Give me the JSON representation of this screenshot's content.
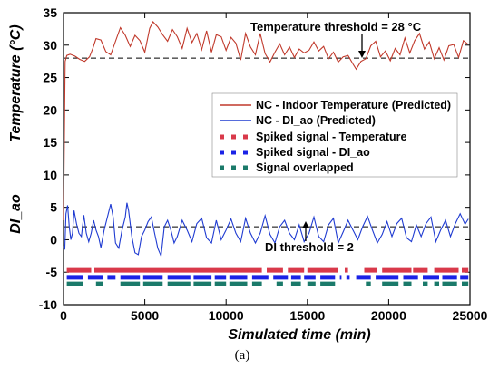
{
  "chart_data": {
    "type": "line",
    "xlabel": "Simulated time (min)",
    "ylabel_top": "Temperature (°C)",
    "ylabel_bottom": "DI_ao",
    "xlim": [
      0,
      25000
    ],
    "ylim": [
      -10,
      35
    ],
    "x_ticks": [
      0,
      5000,
      10000,
      15000,
      20000,
      25000
    ],
    "y_ticks": [
      -10,
      -5,
      0,
      5,
      10,
      15,
      20,
      25,
      30,
      35
    ],
    "grid": false,
    "legend_position": "center-right",
    "caption": "(a)",
    "annotations": {
      "temperature_threshold_label": "Temperature threshold = 28 °C",
      "temperature_threshold_value": 28,
      "di_threshold_label": "DI threshold = 2",
      "di_threshold_value": 2
    },
    "colors": {
      "temperature": "#c0392b",
      "di": "#1f3bd1",
      "spike_temp": "#d9394a",
      "spike_di": "#1a22e6",
      "overlap": "#1b7a6a"
    },
    "series": [
      {
        "name": "NC - Indoor Temperature (Predicted)",
        "kind": "line",
        "x": [
          0,
          100,
          200,
          400,
          700,
          1000,
          1300,
          1600,
          1800,
          2000,
          2300,
          2600,
          2900,
          3200,
          3500,
          3800,
          4100,
          4400,
          4700,
          5000,
          5300,
          5500,
          5800,
          6100,
          6400,
          6700,
          7000,
          7300,
          7600,
          7900,
          8200,
          8500,
          8800,
          9100,
          9400,
          9700,
          10000,
          10300,
          10600,
          10900,
          11200,
          11500,
          11800,
          12100,
          12400,
          12700,
          13000,
          13300,
          13600,
          13900,
          14200,
          14500,
          14800,
          15100,
          15400,
          15700,
          16000,
          16300,
          16600,
          16900,
          17200,
          17500,
          17800,
          18000,
          18300,
          18600,
          18900,
          19200,
          19500,
          19800,
          20100,
          20400,
          20700,
          21000,
          21300,
          21600,
          21900,
          22200,
          22500,
          22800,
          23100,
          23400,
          23700,
          24000,
          24300,
          24600,
          24900
        ],
        "y": [
          3,
          27.5,
          28.4,
          28.6,
          28.3,
          27.8,
          27.5,
          28.2,
          29.5,
          31,
          30.8,
          29,
          28.5,
          30.6,
          32.7,
          31.5,
          29.8,
          31.5,
          30.7,
          28.9,
          32.6,
          33.6,
          32.8,
          31.6,
          30.6,
          32.4,
          31.3,
          29.5,
          32.6,
          30.4,
          31.8,
          29.3,
          32.2,
          28.9,
          31.6,
          31.3,
          29.2,
          31.2,
          30.3,
          27.7,
          31.8,
          29.7,
          28.5,
          31.8,
          28.7,
          27.4,
          28.9,
          30.2,
          28.5,
          29.7,
          28.1,
          29.4,
          28.8,
          29.2,
          30.5,
          29.1,
          29.8,
          27.9,
          28.9,
          27.4,
          28.2,
          28.4,
          27.1,
          26.3,
          27.5,
          27.9,
          29.9,
          30.6,
          28.2,
          29.1,
          27.6,
          29.5,
          28.5,
          31.1,
          28.8,
          30.7,
          31.8,
          29.4,
          30.5,
          27.9,
          29.6,
          27.7,
          29.9,
          30.1,
          28.1,
          30.7,
          30.1
        ]
      },
      {
        "name": "NC - DI_ao (Predicted)",
        "kind": "line",
        "x": [
          0,
          80,
          150,
          250,
          350,
          450,
          550,
          650,
          800,
          950,
          1100,
          1250,
          1400,
          1550,
          1700,
          1850,
          2000,
          2150,
          2300,
          2500,
          2700,
          2900,
          3050,
          3200,
          3400,
          3600,
          3800,
          3900,
          4000,
          4200,
          4400,
          4600,
          4800,
          5000,
          5200,
          5400,
          5600,
          5800,
          6000,
          6200,
          6400,
          6600,
          6800,
          7000,
          7300,
          7600,
          7900,
          8200,
          8500,
          8800,
          9100,
          9400,
          9700,
          10000,
          10300,
          10600,
          10900,
          11200,
          11500,
          11800,
          12100,
          12400,
          12700,
          13000,
          13300,
          13600,
          13900,
          14200,
          14500,
          14800,
          15100,
          15400,
          15700,
          16000,
          16300,
          16600,
          16900,
          17200,
          17500,
          17800,
          18100,
          18400,
          18700,
          19000,
          19300,
          19600,
          19900,
          20200,
          20500,
          20800,
          21100,
          21400,
          21700,
          22000,
          22300,
          22600,
          22900,
          23200,
          23500,
          23800,
          24100,
          24400,
          24700,
          24900
        ],
        "y": [
          -1,
          -1.5,
          4,
          5.3,
          2,
          0,
          1,
          4.5,
          2.5,
          1,
          0.5,
          3.8,
          1,
          -0.3,
          1,
          3,
          1.5,
          0.5,
          -1.2,
          1.5,
          3.5,
          5.5,
          3.5,
          -0.5,
          -1.3,
          1.5,
          3.5,
          5.7,
          4.5,
          0.5,
          -2,
          -2.3,
          0.5,
          1.5,
          2.8,
          3.5,
          1,
          -1.3,
          -2.5,
          2,
          3,
          1.5,
          -0.5,
          0.5,
          3,
          1.5,
          -0.3,
          2.5,
          3.3,
          0.3,
          -0.5,
          3,
          0,
          1.5,
          3.2,
          1,
          -0.3,
          3.3,
          1,
          -0.5,
          1,
          3.7,
          0.8,
          -0.5,
          2,
          3,
          1,
          0,
          2.3,
          -0.3,
          1,
          3.5,
          0.5,
          -0.3,
          2.3,
          3.3,
          -0.5,
          1.2,
          3,
          1.5,
          0,
          2,
          3.6,
          1.5,
          -0.5,
          0.8,
          2.8,
          0.5,
          2.5,
          3.3,
          0.3,
          -0.3,
          2.3,
          0.5,
          2.5,
          3.5,
          -0.3,
          1.5,
          3,
          0.5,
          2.5,
          4,
          2.4,
          3.2
        ]
      },
      {
        "name": "Spiked signal - Temperature",
        "kind": "segments",
        "y": -4.7,
        "segments": [
          [
            200,
            1700
          ],
          [
            1900,
            12200
          ],
          [
            12500,
            13500
          ],
          [
            13800,
            14800
          ],
          [
            15000,
            16900
          ],
          [
            17300,
            17500
          ],
          [
            18500,
            19300
          ],
          [
            19600,
            21400
          ],
          [
            21500,
            22400
          ],
          [
            22800,
            24300
          ],
          [
            24500,
            24900
          ]
        ]
      },
      {
        "name": "Spiked signal - DI_ao",
        "kind": "segments",
        "y": -5.8,
        "segments": [
          [
            200,
            1200
          ],
          [
            1500,
            2400
          ],
          [
            2700,
            3200
          ],
          [
            3500,
            4700
          ],
          [
            4900,
            6100
          ],
          [
            6400,
            7800
          ],
          [
            8000,
            9100
          ],
          [
            9300,
            10000
          ],
          [
            10200,
            11300
          ],
          [
            11600,
            12600
          ],
          [
            12900,
            13800
          ],
          [
            14000,
            14600
          ],
          [
            14800,
            15500
          ],
          [
            15800,
            16700
          ],
          [
            17000,
            17100
          ],
          [
            17400,
            17600
          ],
          [
            18000,
            18900
          ],
          [
            19200,
            20600
          ],
          [
            20900,
            21800
          ],
          [
            22100,
            23100
          ],
          [
            23300,
            24200
          ],
          [
            24400,
            24900
          ]
        ]
      },
      {
        "name": "Signal overlapped",
        "kind": "segments",
        "y": -6.8,
        "segments": [
          [
            200,
            1200
          ],
          [
            2000,
            2400
          ],
          [
            3500,
            4700
          ],
          [
            4900,
            6100
          ],
          [
            6400,
            7800
          ],
          [
            8000,
            9100
          ],
          [
            9300,
            10000
          ],
          [
            10200,
            11300
          ],
          [
            11600,
            12200
          ],
          [
            13100,
            13500
          ],
          [
            14000,
            14600
          ],
          [
            15000,
            15500
          ],
          [
            15800,
            16700
          ],
          [
            18600,
            18900
          ],
          [
            19600,
            20600
          ],
          [
            20900,
            21400
          ],
          [
            22100,
            22400
          ],
          [
            22800,
            23100
          ],
          [
            23300,
            24200
          ],
          [
            24500,
            24900
          ]
        ]
      }
    ]
  }
}
